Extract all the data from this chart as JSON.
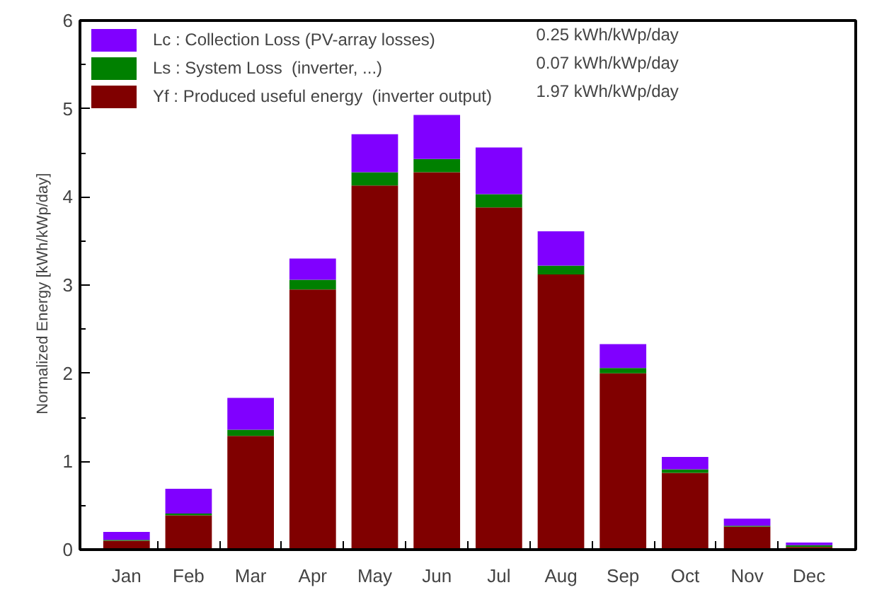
{
  "chart_data": {
    "type": "bar",
    "stacked": true,
    "ylabel": "Normalized   Energy   [kWh/kWp/day]",
    "categories": [
      "Jan",
      "Feb",
      "Mar",
      "Apr",
      "May",
      "Jun",
      "Jul",
      "Aug",
      "Sep",
      "Oct",
      "Nov",
      "Dec"
    ],
    "series": [
      {
        "name": "Yf : Produced useful energy  (inverter output)",
        "color": "#800000",
        "values": [
          0.1,
          0.39,
          1.29,
          2.95,
          4.13,
          4.28,
          3.88,
          3.12,
          2.0,
          0.87,
          0.26,
          0.03
        ]
      },
      {
        "name": "Ls : System Loss  (inverter, ...)",
        "color": "#008000",
        "values": [
          0.01,
          0.02,
          0.07,
          0.11,
          0.15,
          0.15,
          0.15,
          0.1,
          0.06,
          0.04,
          0.01,
          0.02
        ]
      },
      {
        "name": "Lc : Collection Loss (PV-array losses)",
        "color": "#8000ff",
        "values": [
          0.09,
          0.28,
          0.36,
          0.24,
          0.43,
          0.5,
          0.53,
          0.39,
          0.27,
          0.14,
          0.08,
          0.03
        ]
      }
    ],
    "annotations": [
      "1.97 kWh/kWp/day",
      "0.07 kWh/kWp/day",
      "0.25 kWh/kWp/day"
    ],
    "ylim": [
      0,
      6
    ],
    "yticks": [
      0,
      1,
      2,
      3,
      4,
      5,
      6
    ],
    "grid": false,
    "legend": "top left"
  }
}
